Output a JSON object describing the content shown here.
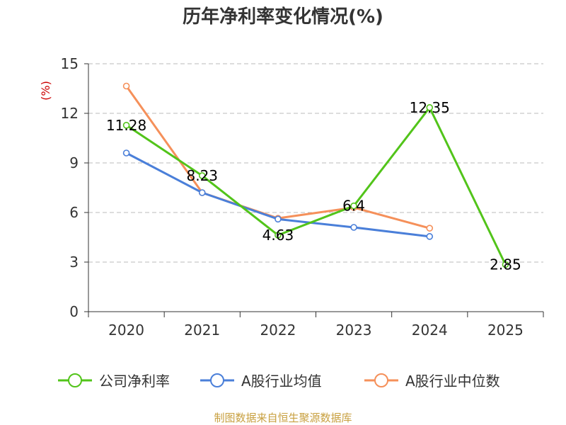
{
  "chart_data": {
    "type": "line",
    "title": "历年净利率变化情况(%)",
    "ylabel": "(%)",
    "xlabel": "",
    "ylim": [
      0,
      15
    ],
    "yticks": [
      0,
      3,
      6,
      9,
      12,
      15
    ],
    "grid": true,
    "legend_position": "bottom",
    "categories": [
      "2020",
      "2021",
      "2022",
      "2023",
      "2024",
      "2025"
    ],
    "series": [
      {
        "name": "公司净利率",
        "color": "#52c41a",
        "values": [
          11.28,
          8.23,
          4.63,
          6.4,
          12.35,
          2.85
        ],
        "labels": [
          "11.28",
          "8.23",
          "4.63",
          "6.4",
          "12.35",
          "2.85"
        ]
      },
      {
        "name": "A股行业均值",
        "color": "#4a7fd9",
        "values": [
          9.6,
          7.2,
          5.6,
          5.1,
          4.55,
          null
        ]
      },
      {
        "name": "A股行业中位数",
        "color": "#f5905a",
        "values": [
          13.65,
          7.2,
          5.65,
          6.3,
          5.05,
          null
        ]
      }
    ]
  },
  "source": "制图数据来自恒生聚源数据库",
  "colors": {
    "grid": "#bbbbbb",
    "axis": "#333333",
    "unit": "#cc0000"
  }
}
